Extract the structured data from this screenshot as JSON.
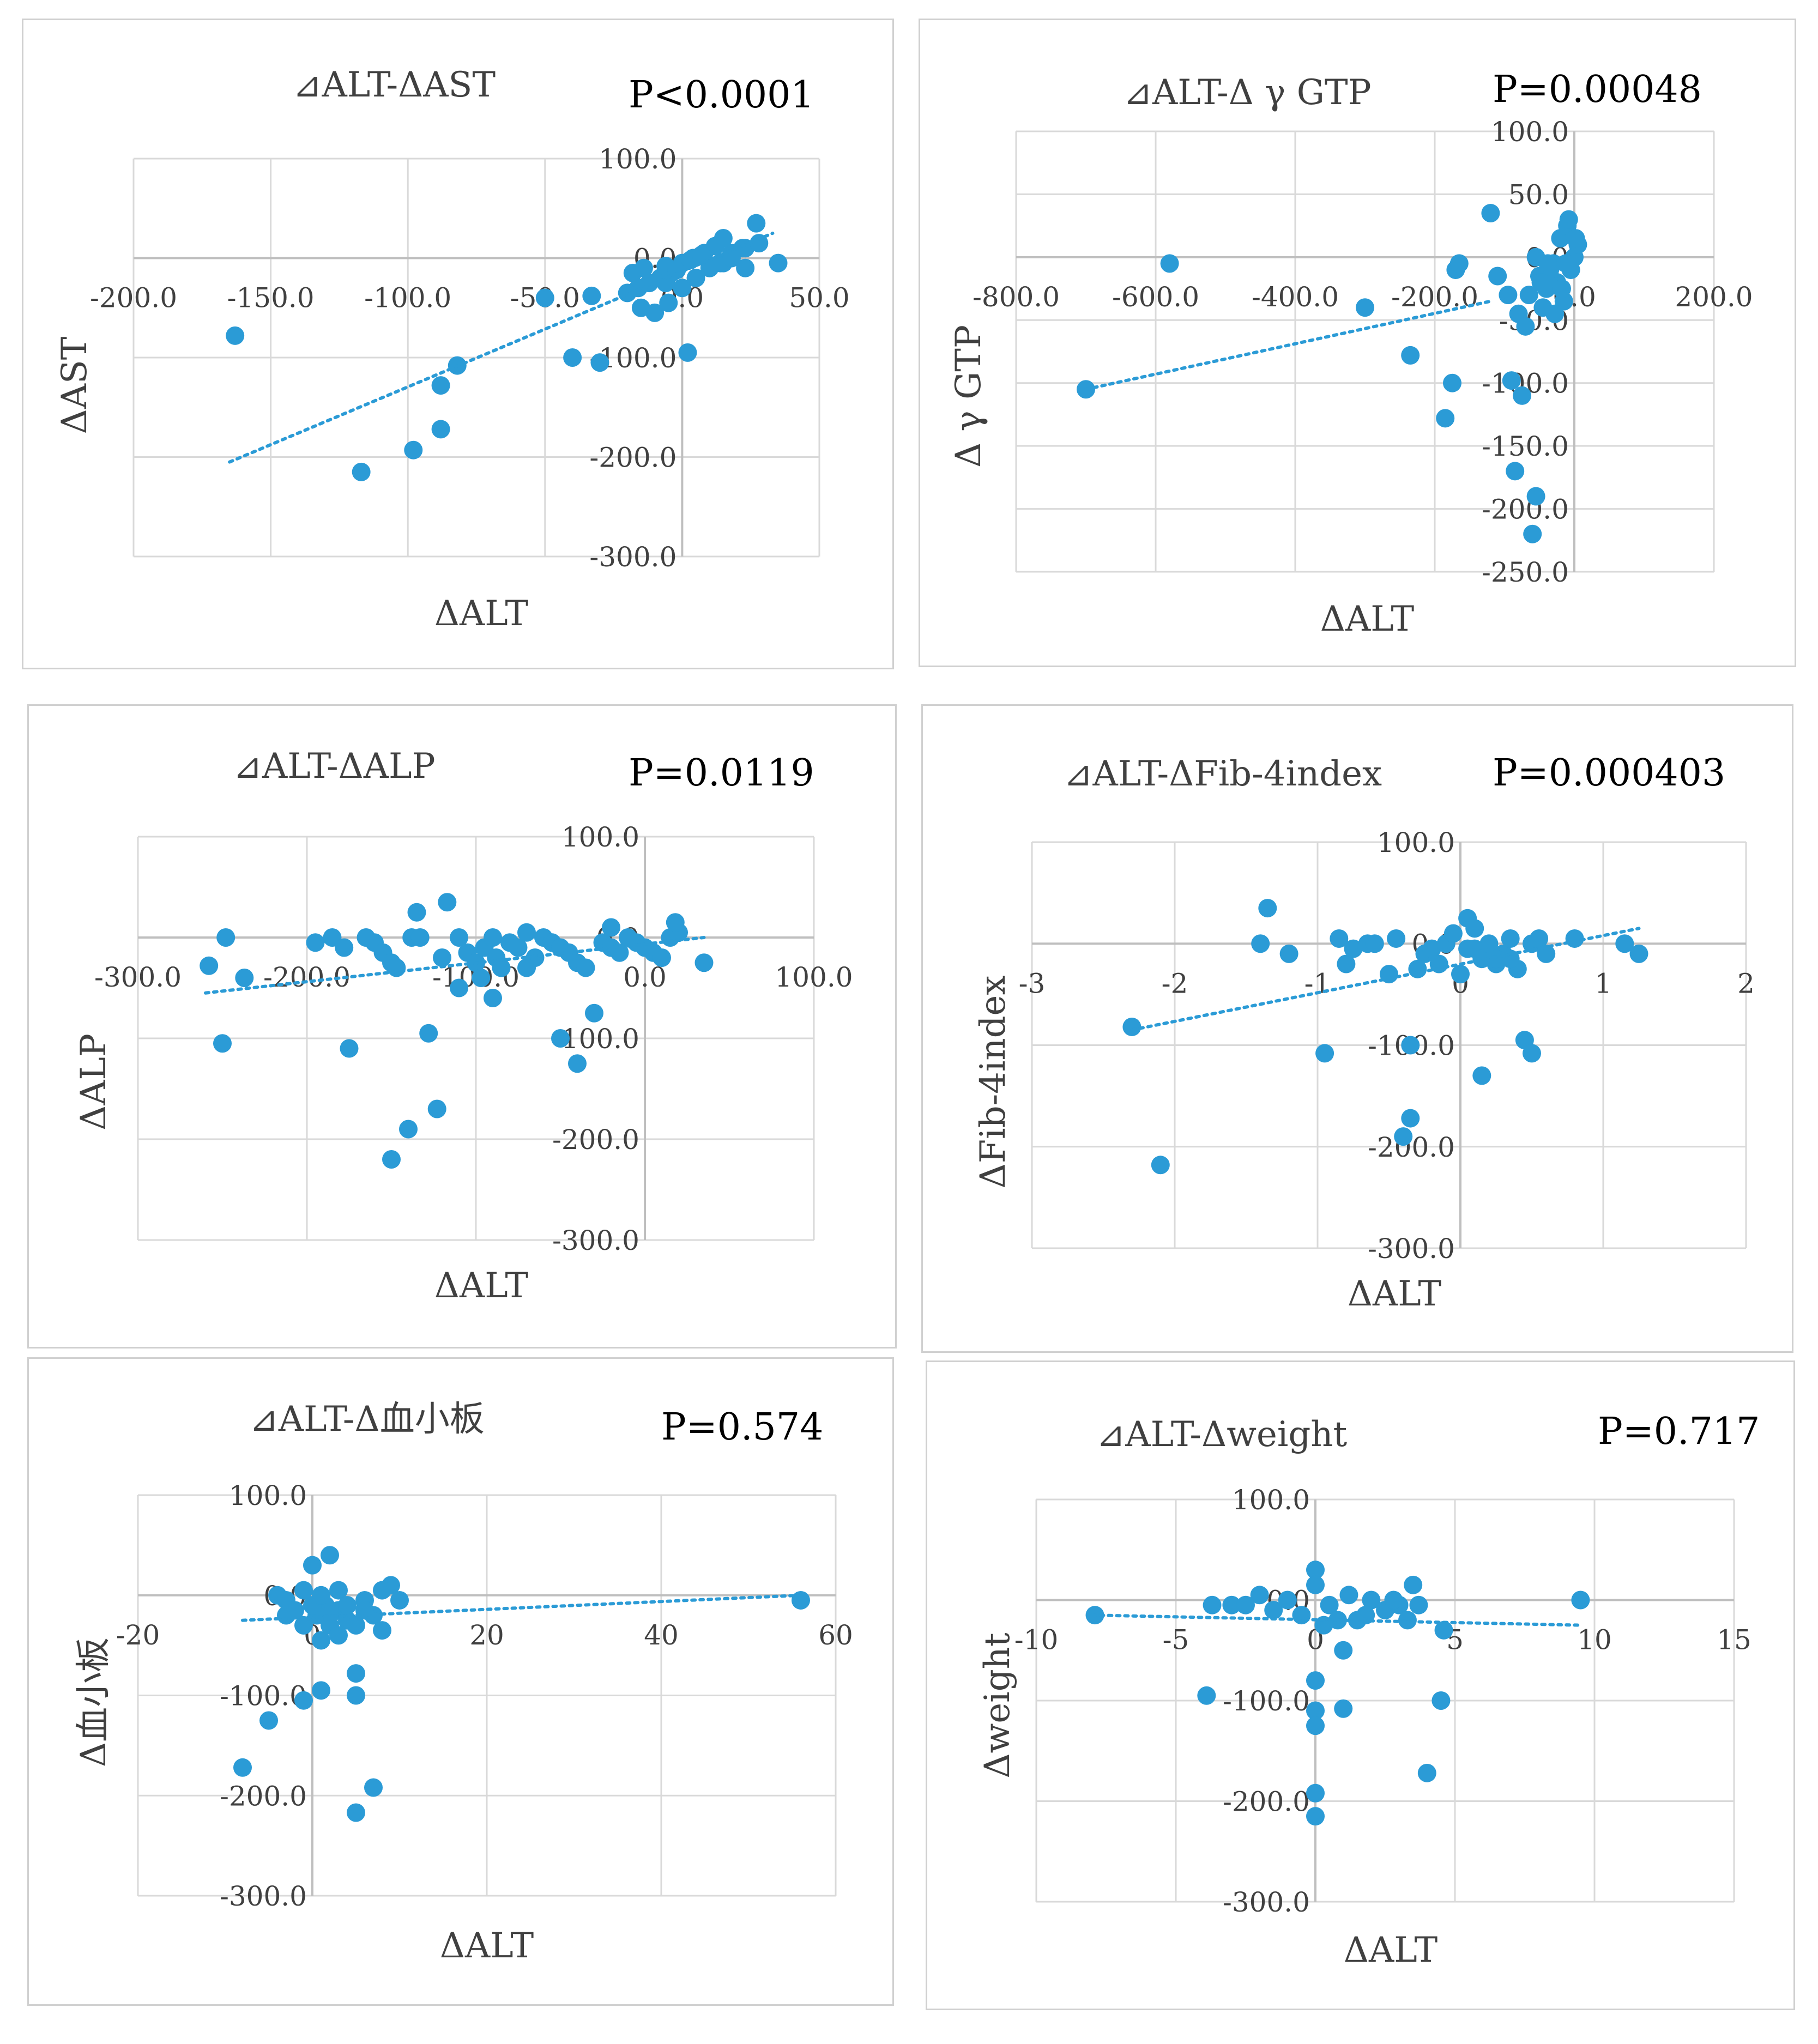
{
  "colors": {
    "marker": "#2b9bd6",
    "trend": "#2b9bd6",
    "grid": "#d9d9d9",
    "text": "#404040",
    "pvalue": "#000000"
  },
  "chart_data": [
    {
      "type": "scatter",
      "title": "⊿ALT-ΔAST",
      "p_value": "P<0.0001",
      "xlabel": "ΔALT",
      "ylabel": "ΔAST",
      "xlim": [
        -200,
        50
      ],
      "ylim": [
        -300,
        100
      ],
      "x_ticks": [
        -200,
        -150,
        -100,
        -50,
        0,
        50
      ],
      "y_ticks": [
        100,
        0,
        -100,
        -200,
        -300
      ],
      "x_tick_labels": [
        "-200.0",
        "-150.0",
        "-100.0",
        "-50.0",
        "0.0",
        "50.0"
      ],
      "y_tick_labels": [
        "100.0",
        "0.0",
        "-100.0",
        "-200.0",
        "-300.0"
      ],
      "trendline": [
        [
          -165,
          -205
        ],
        [
          33,
          25
        ]
      ],
      "points": [
        [
          -163,
          -78
        ],
        [
          -117,
          -215
        ],
        [
          -98,
          -193
        ],
        [
          -88,
          -172
        ],
        [
          -88,
          -128
        ],
        [
          -82,
          -108
        ],
        [
          -50,
          -40
        ],
        [
          -40,
          -100
        ],
        [
          -30,
          -105
        ],
        [
          -33,
          -38
        ],
        [
          -15,
          -50
        ],
        [
          -10,
          -55
        ],
        [
          -5,
          -45
        ],
        [
          0,
          -30
        ],
        [
          5,
          -20
        ],
        [
          10,
          -10
        ],
        [
          15,
          -5
        ],
        [
          18,
          5
        ],
        [
          22,
          10
        ],
        [
          2,
          -95
        ],
        [
          23,
          10
        ],
        [
          28,
          15
        ],
        [
          15,
          20
        ],
        [
          12,
          12
        ],
        [
          8,
          5
        ],
        [
          4,
          0
        ],
        [
          0,
          -5
        ],
        [
          -4,
          -15
        ],
        [
          -8,
          -20
        ],
        [
          -12,
          -25
        ],
        [
          -16,
          -30
        ],
        [
          -20,
          -35
        ],
        [
          -6,
          -8
        ],
        [
          -2,
          -12
        ],
        [
          3,
          -2
        ],
        [
          7,
          3
        ],
        [
          -18,
          -15
        ],
        [
          -14,
          -10
        ],
        [
          14,
          -5
        ],
        [
          23,
          -10
        ],
        [
          35,
          -5
        ],
        [
          27,
          35
        ],
        [
          18,
          0
        ],
        [
          -6,
          -25
        ]
      ]
    },
    {
      "type": "scatter",
      "title": "⊿ALT-Δ γ GTP",
      "p_value": "P=0.00048",
      "xlabel": "ΔALT",
      "ylabel": "Δ γ GTP",
      "xlim": [
        -800,
        200
      ],
      "ylim": [
        -250,
        100
      ],
      "x_ticks": [
        -800,
        -600,
        -400,
        -200,
        0,
        200
      ],
      "y_ticks": [
        100,
        50,
        0,
        -50,
        -100,
        -150,
        -200,
        -250
      ],
      "x_tick_labels": [
        "-800.0",
        "-600.0",
        "-400.0",
        "-200.0",
        "0.0",
        "200.0"
      ],
      "y_tick_labels": [
        "100.0",
        "50.0",
        "0.0",
        "-50.0",
        "-100.0",
        "-150.0",
        "-200.0",
        "-250.0"
      ],
      "trendline": [
        [
          -700,
          -105
        ],
        [
          -120,
          -35
        ]
      ],
      "points": [
        [
          -700,
          -105
        ],
        [
          -580,
          -5
        ],
        [
          -300,
          -40
        ],
        [
          -235,
          -78
        ],
        [
          -185,
          -128
        ],
        [
          -175,
          -100
        ],
        [
          -170,
          -10
        ],
        [
          -165,
          -5
        ],
        [
          -120,
          35
        ],
        [
          -110,
          -15
        ],
        [
          -95,
          -30
        ],
        [
          -90,
          -98
        ],
        [
          -85,
          -170
        ],
        [
          -80,
          -45
        ],
        [
          -75,
          -110
        ],
        [
          -70,
          -55
        ],
        [
          -60,
          -220
        ],
        [
          -55,
          -190
        ],
        [
          -50,
          -15
        ],
        [
          -40,
          -25
        ],
        [
          -30,
          -5
        ],
        [
          -20,
          15
        ],
        [
          -10,
          25
        ],
        [
          0,
          0
        ],
        [
          5,
          10
        ],
        [
          -15,
          -35
        ],
        [
          -25,
          -20
        ],
        [
          -35,
          -10
        ],
        [
          -45,
          -40
        ],
        [
          -55,
          0
        ],
        [
          -65,
          -30
        ],
        [
          -5,
          -10
        ],
        [
          -8,
          30
        ],
        [
          2,
          15
        ],
        [
          -12,
          -5
        ],
        [
          -18,
          -25
        ],
        [
          -28,
          -45
        ],
        [
          -38,
          -5
        ],
        [
          -48,
          -20
        ]
      ]
    },
    {
      "type": "scatter",
      "title": "⊿ALT-ΔALP",
      "p_value": "P=0.0119",
      "xlabel": "ΔALT",
      "ylabel": "ΔALP",
      "xlim": [
        -300,
        100
      ],
      "ylim": [
        -300,
        100
      ],
      "x_ticks": [
        -300,
        -200,
        -100,
        0,
        100
      ],
      "y_ticks": [
        100,
        0,
        -100,
        -200,
        -300
      ],
      "x_tick_labels": [
        "-300.0",
        "-200.0",
        "-100.0",
        "0.0",
        "100.0"
      ],
      "y_tick_labels": [
        "100.0",
        "0.0",
        "-100.0",
        "-200.0",
        "-300.0"
      ],
      "trendline": [
        [
          -260,
          -55
        ],
        [
          35,
          0
        ]
      ],
      "points": [
        [
          -258,
          -28
        ],
        [
          -248,
          0
        ],
        [
          -250,
          -105
        ],
        [
          -237,
          -40
        ],
        [
          -195,
          -5
        ],
        [
          -185,
          0
        ],
        [
          -178,
          -10
        ],
        [
          -175,
          -110
        ],
        [
          -165,
          0
        ],
        [
          -160,
          -5
        ],
        [
          -155,
          -15
        ],
        [
          -150,
          -25
        ],
        [
          -147,
          -30
        ],
        [
          -138,
          0
        ],
        [
          -135,
          25
        ],
        [
          -133,
          0
        ],
        [
          -128,
          -95
        ],
        [
          -123,
          -170
        ],
        [
          -117,
          35
        ],
        [
          -110,
          0
        ],
        [
          -105,
          -15
        ],
        [
          -100,
          -25
        ],
        [
          -97,
          -40
        ],
        [
          -95,
          -10
        ],
        [
          -90,
          0
        ],
        [
          -88,
          -20
        ],
        [
          -85,
          -30
        ],
        [
          -80,
          -5
        ],
        [
          -75,
          -10
        ],
        [
          -70,
          5
        ],
        [
          -65,
          -20
        ],
        [
          -60,
          0
        ],
        [
          -55,
          -5
        ],
        [
          -50,
          -10
        ],
        [
          -45,
          -15
        ],
        [
          -40,
          -25
        ],
        [
          -35,
          -30
        ],
        [
          -30,
          -75
        ],
        [
          -25,
          -5
        ],
        [
          -20,
          -10
        ],
        [
          -15,
          -15
        ],
        [
          -10,
          0
        ],
        [
          -5,
          -5
        ],
        [
          0,
          -10
        ],
        [
          5,
          -15
        ],
        [
          10,
          -20
        ],
        [
          15,
          0
        ],
        [
          20,
          5
        ],
        [
          35,
          -25
        ],
        [
          -140,
          -190
        ],
        [
          -150,
          -220
        ],
        [
          -110,
          -50
        ],
        [
          -90,
          -60
        ],
        [
          -50,
          -100
        ],
        [
          -40,
          -125
        ],
        [
          -70,
          -30
        ],
        [
          18,
          15
        ],
        [
          -20,
          10
        ],
        [
          -120,
          -20
        ]
      ]
    },
    {
      "type": "scatter",
      "title": "⊿ALT-ΔFib-4index",
      "p_value": "P=0.000403",
      "xlabel": "ΔALT",
      "ylabel": "ΔFib-4index",
      "xlim": [
        -3,
        2
      ],
      "ylim": [
        -300,
        100
      ],
      "x_ticks": [
        -3,
        -2,
        -1,
        0,
        1,
        2
      ],
      "y_ticks": [
        100,
        0,
        -100,
        -200,
        -300
      ],
      "x_tick_labels": [
        "-3",
        "-2",
        "-1",
        "0",
        "1",
        "2"
      ],
      "y_tick_labels": [
        "100.0",
        "0.0",
        "-100.0",
        "-200.0",
        "-300.0"
      ],
      "trendline": [
        [
          -2.3,
          -85
        ],
        [
          1.25,
          15
        ]
      ],
      "points": [
        [
          -2.3,
          -82
        ],
        [
          -2.1,
          -218
        ],
        [
          -1.35,
          35
        ],
        [
          -1.4,
          0
        ],
        [
          -1.2,
          -10
        ],
        [
          -0.95,
          -108
        ],
        [
          -0.85,
          5
        ],
        [
          -0.8,
          -20
        ],
        [
          -0.75,
          -5
        ],
        [
          -0.65,
          0
        ],
        [
          -0.5,
          -30
        ],
        [
          -0.45,
          5
        ],
        [
          -0.35,
          -100
        ],
        [
          -0.35,
          -172
        ],
        [
          -0.4,
          -190
        ],
        [
          -0.25,
          -10
        ],
        [
          -0.2,
          -5
        ],
        [
          -0.15,
          -20
        ],
        [
          -0.1,
          0
        ],
        [
          0,
          -30
        ],
        [
          0.05,
          25
        ],
        [
          0.1,
          -5
        ],
        [
          0.15,
          -15
        ],
        [
          0.2,
          0
        ],
        [
          0.25,
          -20
        ],
        [
          0.3,
          -10
        ],
        [
          0.35,
          5
        ],
        [
          0.4,
          -25
        ],
        [
          0.5,
          0
        ],
        [
          0.55,
          5
        ],
        [
          0.6,
          -10
        ],
        [
          0.15,
          -130
        ],
        [
          0.45,
          -95
        ],
        [
          0.5,
          -108
        ],
        [
          0.8,
          5
        ],
        [
          1.15,
          0
        ],
        [
          1.25,
          -10
        ],
        [
          0.05,
          -5
        ],
        [
          -0.05,
          10
        ],
        [
          0.25,
          -15
        ],
        [
          -0.3,
          -25
        ],
        [
          0.1,
          15
        ],
        [
          0.35,
          -15
        ],
        [
          -0.6,
          0
        ]
      ]
    },
    {
      "type": "scatter",
      "title": "⊿ALT-Δ血小板",
      "p_value": "P=0.574",
      "xlabel": "ΔALT",
      "ylabel": "Δ血小板",
      "xlim": [
        -20,
        60
      ],
      "ylim": [
        -300,
        100
      ],
      "x_ticks": [
        -20,
        0,
        20,
        40,
        60
      ],
      "y_ticks": [
        100,
        0,
        -100,
        -200,
        -300
      ],
      "x_tick_labels": [
        "-20",
        "0",
        "20",
        "40",
        "60"
      ],
      "y_tick_labels": [
        "100.0",
        "0.0",
        "-100.0",
        "-200.0",
        "-300.0"
      ],
      "trendline": [
        [
          -8,
          -25
        ],
        [
          56,
          0
        ]
      ],
      "points": [
        [
          -8,
          -172
        ],
        [
          -5,
          -125
        ],
        [
          -4,
          0
        ],
        [
          -3,
          -5
        ],
        [
          -1,
          -105
        ],
        [
          0,
          30
        ],
        [
          0.5,
          -20
        ],
        [
          1,
          -95
        ],
        [
          1.5,
          -10
        ],
        [
          2,
          40
        ],
        [
          3,
          -15
        ],
        [
          4,
          -25
        ],
        [
          5,
          -30
        ],
        [
          5,
          -100
        ],
        [
          5,
          -78
        ],
        [
          5,
          -217
        ],
        [
          6,
          -5
        ],
        [
          7,
          -20
        ],
        [
          7,
          -192
        ],
        [
          8,
          -35
        ],
        [
          9,
          10
        ],
        [
          10,
          -5
        ],
        [
          -2,
          -15
        ],
        [
          0,
          -10
        ],
        [
          1,
          0
        ],
        [
          2,
          -20
        ],
        [
          3,
          5
        ],
        [
          4,
          -10
        ],
        [
          6,
          -15
        ],
        [
          8,
          5
        ],
        [
          -1,
          5
        ],
        [
          56,
          -5
        ],
        [
          -3,
          -20
        ],
        [
          2,
          -30
        ],
        [
          3,
          -40
        ],
        [
          -1,
          -30
        ],
        [
          1,
          -45
        ]
      ]
    },
    {
      "type": "scatter",
      "title": "⊿ALT-Δweight",
      "p_value": "P=0.717",
      "xlabel": "ΔALT",
      "ylabel": "Δweight",
      "xlim": [
        -10,
        15
      ],
      "ylim": [
        -300,
        100
      ],
      "x_ticks": [
        -10,
        -5,
        0,
        5,
        10,
        15
      ],
      "y_ticks": [
        100,
        0,
        -100,
        -200,
        -300
      ],
      "x_tick_labels": [
        "-10",
        "-5",
        "0",
        "5",
        "10",
        "15"
      ],
      "y_tick_labels": [
        "100.0",
        "0.0",
        "-100.0",
        "-200.0",
        "-300.0"
      ],
      "trendline": [
        [
          -8,
          -15
        ],
        [
          9.5,
          -25
        ]
      ],
      "points": [
        [
          -7.9,
          -15
        ],
        [
          -3.9,
          -95
        ],
        [
          -3.7,
          -5
        ],
        [
          -3,
          -5
        ],
        [
          -2,
          5
        ],
        [
          -1.5,
          -10
        ],
        [
          -1,
          0
        ],
        [
          0,
          30
        ],
        [
          0,
          15
        ],
        [
          0,
          -80
        ],
        [
          0,
          -110
        ],
        [
          0,
          -125
        ],
        [
          0,
          -192
        ],
        [
          0,
          -215
        ],
        [
          0.5,
          -5
        ],
        [
          0.8,
          -20
        ],
        [
          1,
          -50
        ],
        [
          1,
          -108
        ],
        [
          1.2,
          5
        ],
        [
          1.5,
          -20
        ],
        [
          2,
          0
        ],
        [
          2.5,
          -10
        ],
        [
          3,
          -5
        ],
        [
          3.3,
          -20
        ],
        [
          3.5,
          15
        ],
        [
          3.7,
          -5
        ],
        [
          4,
          -172
        ],
        [
          4.5,
          -100
        ],
        [
          4.6,
          -30
        ],
        [
          9.5,
          0
        ],
        [
          -0.5,
          -15
        ],
        [
          0.3,
          -25
        ],
        [
          1.8,
          -15
        ],
        [
          2.8,
          0
        ],
        [
          -2.5,
          -5
        ]
      ]
    }
  ]
}
